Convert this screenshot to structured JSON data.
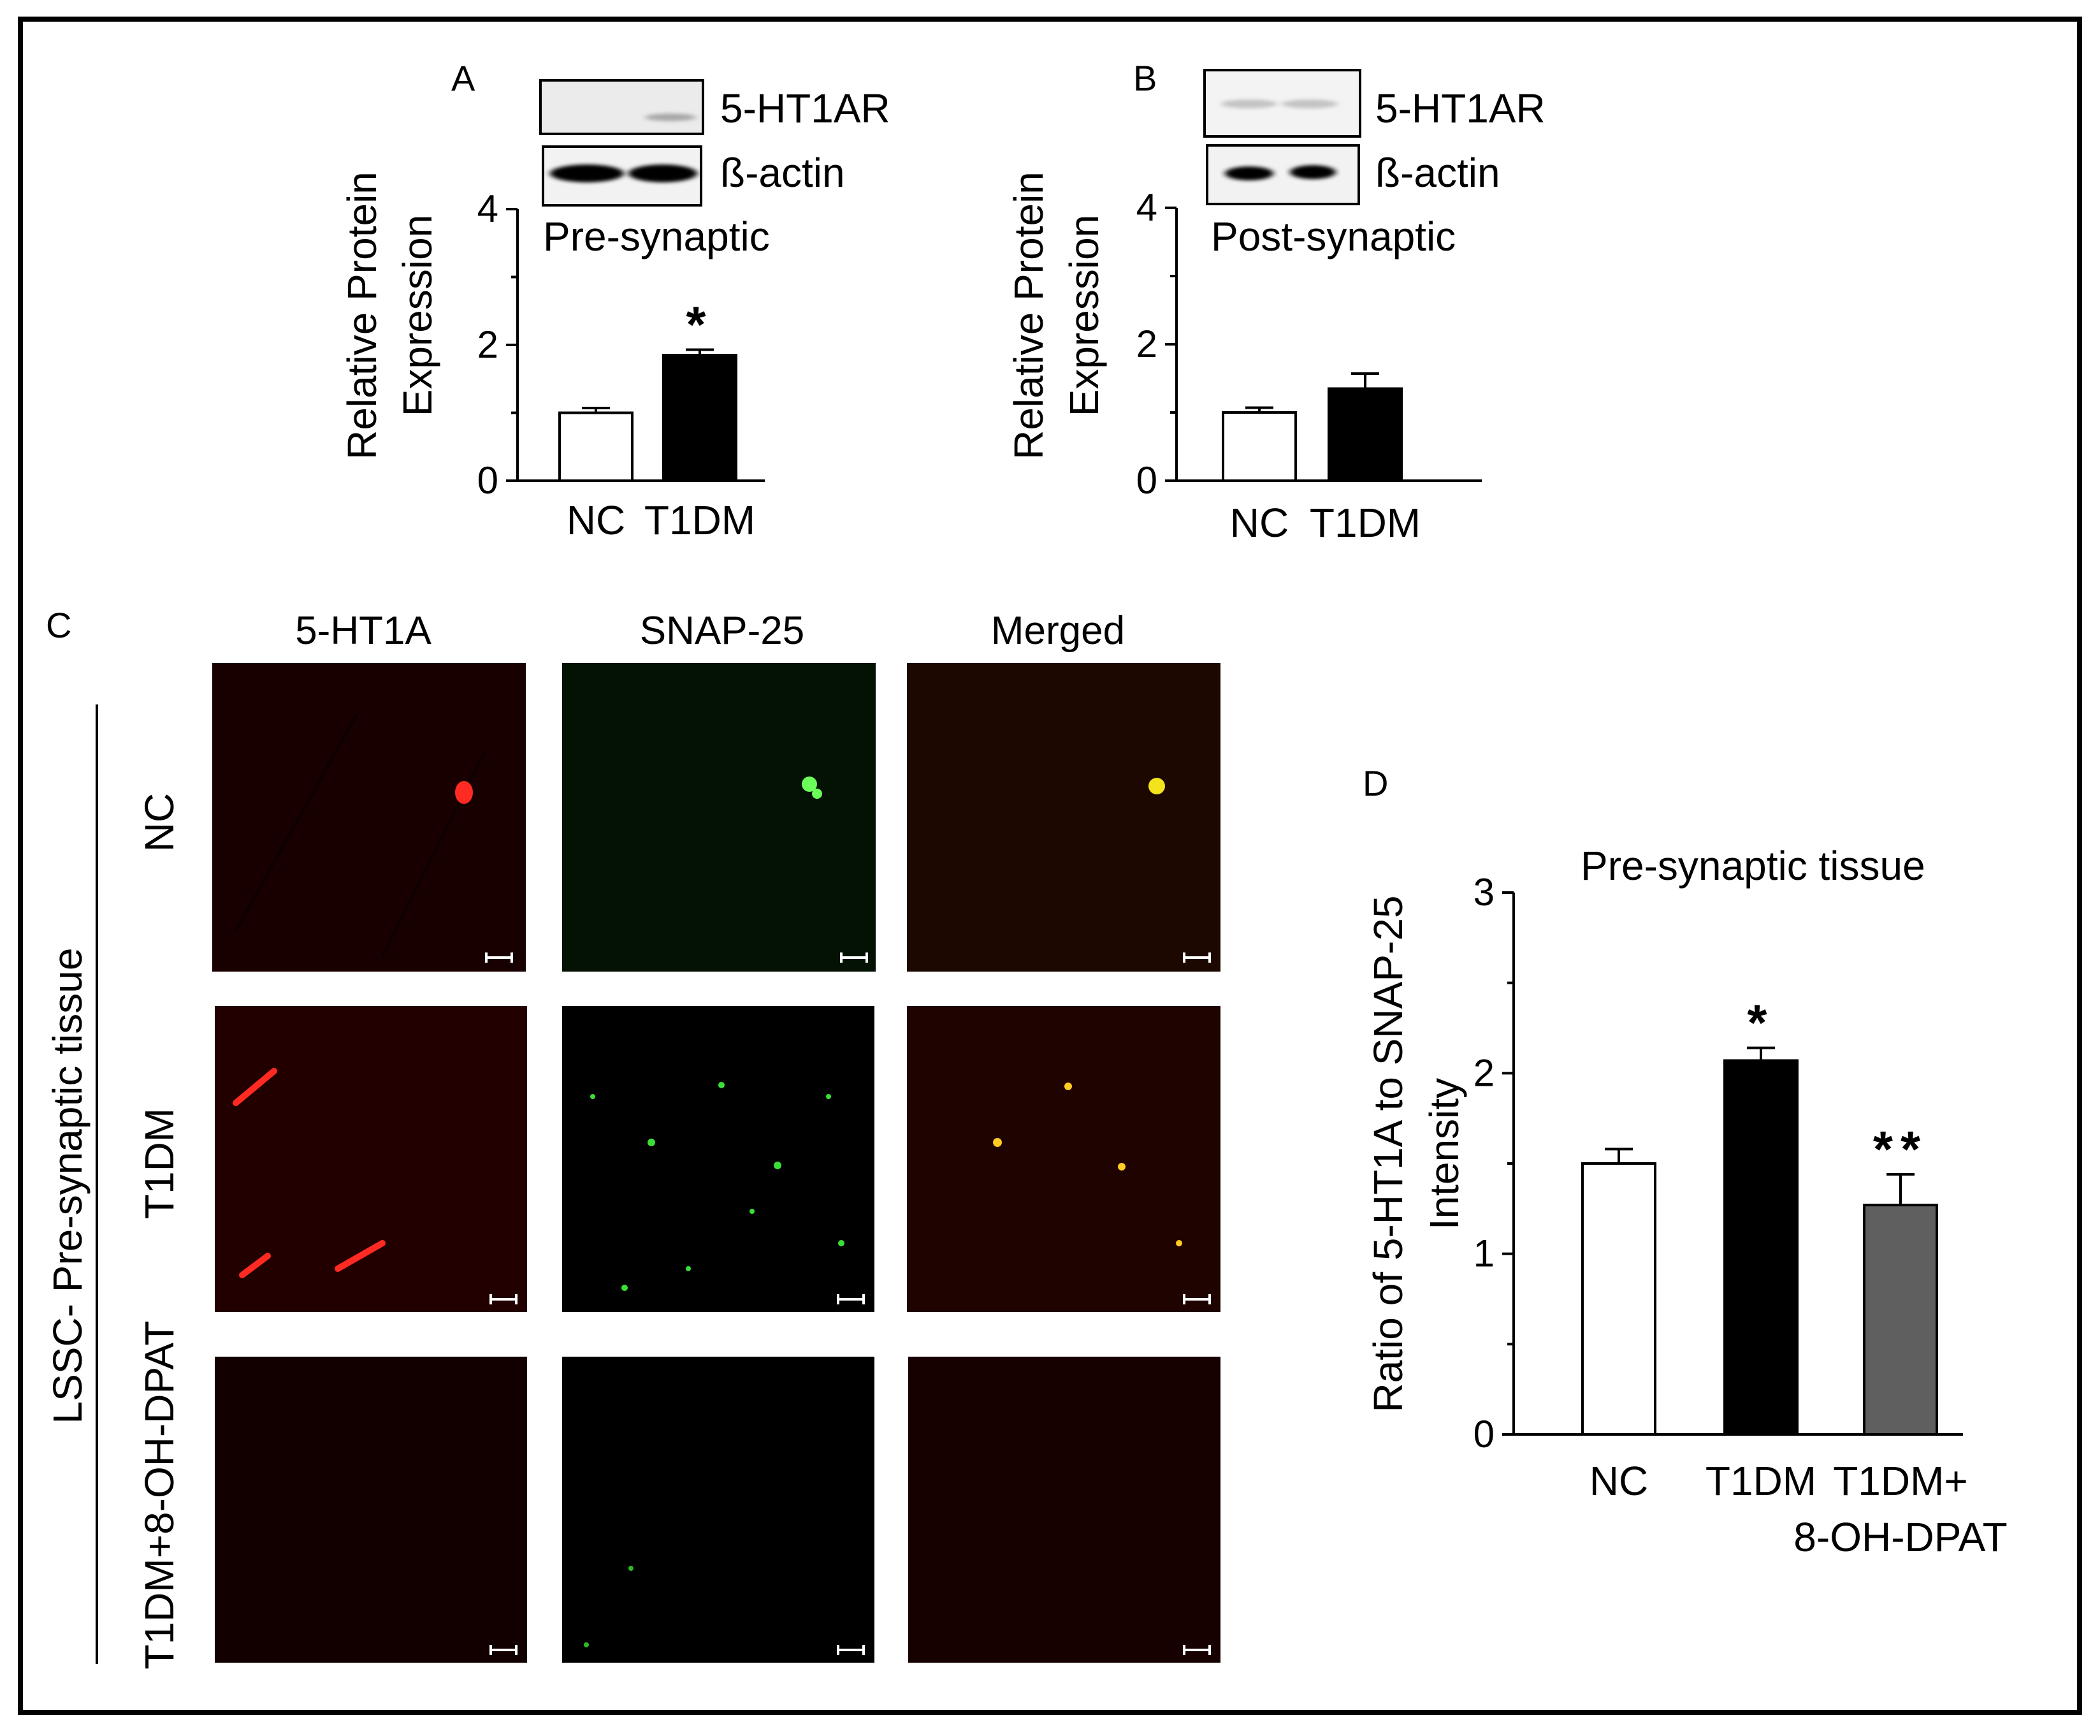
{
  "panel_a": {
    "letter": "A",
    "blot_labels": [
      "5-HT1AR",
      "ß-actin"
    ],
    "subtitle": "Pre-synaptic",
    "ylabel": [
      "Relative Protein",
      "Expression"
    ]
  },
  "panel_b": {
    "letter": "B",
    "blot_labels": [
      "5-HT1AR",
      "ß-actin"
    ],
    "subtitle": "Post-synaptic",
    "ylabel": [
      "Relative Protein",
      "Expression"
    ]
  },
  "panel_c": {
    "letter": "C",
    "columns": [
      "5-HT1A",
      "SNAP-25",
      "Merged"
    ],
    "rows": [
      "NC",
      "T1DM",
      "T1DM+8-OH-DPAT"
    ],
    "side_label": "LSSC-  Pre-synaptic tissue"
  },
  "panel_d": {
    "letter": "D",
    "title": "Pre-synaptic tissue",
    "ylabel": [
      "Ratio of 5-HT1A to SNAP-25",
      "Intensity"
    ],
    "category_lines": [
      [
        "NC"
      ],
      [
        "T1DM"
      ],
      [
        "T1DM+",
        "8-OH-DPAT"
      ]
    ]
  },
  "colors": {
    "nc_bar": "#ffffff",
    "t1dm_bar": "#000000",
    "dpat_bar": "#5f5f5f",
    "red_channel": "#e01a14",
    "green_channel": "#22c22a",
    "merged_channel": "#d8621a"
  },
  "chart_data": [
    {
      "type": "bar",
      "panel": "A",
      "categories": [
        "NC",
        "T1DM"
      ],
      "values": [
        1.0,
        1.85
      ],
      "errors": [
        0.07,
        0.08
      ],
      "significance": [
        "",
        "*"
      ],
      "yticks": [
        0,
        2,
        4
      ],
      "ylim": [
        0,
        4
      ]
    },
    {
      "type": "bar",
      "panel": "B",
      "categories": [
        "NC",
        "T1DM"
      ],
      "values": [
        1.0,
        1.35
      ],
      "errors": [
        0.07,
        0.22
      ],
      "significance": [
        "",
        ""
      ],
      "yticks": [
        0,
        2,
        4
      ],
      "ylim": [
        0,
        4
      ]
    },
    {
      "type": "bar",
      "panel": "D",
      "categories": [
        "NC",
        "T1DM",
        "T1DM+8-OH-DPAT"
      ],
      "values": [
        1.5,
        2.07,
        1.27
      ],
      "errors": [
        0.08,
        0.07,
        0.17
      ],
      "significance": [
        "",
        "*",
        "**"
      ],
      "yticks": [
        0,
        1,
        2,
        3
      ],
      "ylim": [
        0,
        3
      ]
    }
  ]
}
